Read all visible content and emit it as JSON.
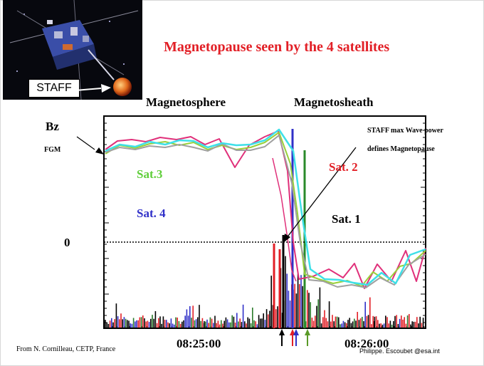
{
  "slide": {
    "title": "Magnetopause seen by the 4 satellites",
    "region_left": "Magnetosphere",
    "region_right": "Magnetosheath",
    "bz_label": "Bz",
    "fgm_label": "FGM",
    "zero_label": "0",
    "staff_badge": "STAFF",
    "staff_note_line1": "STAFF max Wave power",
    "staff_note_line2": "defines Magnetopause",
    "credit_left": "From N. Cornilleau, CETP, France",
    "credit_right": "Philippe. Escoubet @esa.int"
  },
  "colors": {
    "title": "#e21f26",
    "sat1": "#000000",
    "sat2": "#e21f26",
    "sat3": "#5fce3a",
    "sat4": "#3030c8",
    "bz_magenta": "#e0307a",
    "bz_cyan": "#3ee0e8",
    "bz_gray": "#a0a0a0",
    "bz_green": "#9ad03a",
    "arrow_colors": [
      "#000000",
      "#e21f26",
      "#3030c8",
      "#5a9a28"
    ]
  },
  "chart_data": {
    "type": "line",
    "title": "Magnetopause seen by the 4 satellites",
    "xlabel": "",
    "ylabel": "Bz",
    "xticks": [
      "08:25:00",
      "08:26:00"
    ],
    "y_zero_label": "0",
    "grid": false,
    "series": [
      {
        "name": "Sat. 1",
        "color": "#000000"
      },
      {
        "name": "Sat. 2",
        "color": "#e21f26"
      },
      {
        "name": "Sat.3",
        "color": "#5fce3a"
      },
      {
        "name": "Sat. 4",
        "color": "#3030c8"
      }
    ],
    "annotation": "STAFF max Wave power defines Magnetopause"
  }
}
